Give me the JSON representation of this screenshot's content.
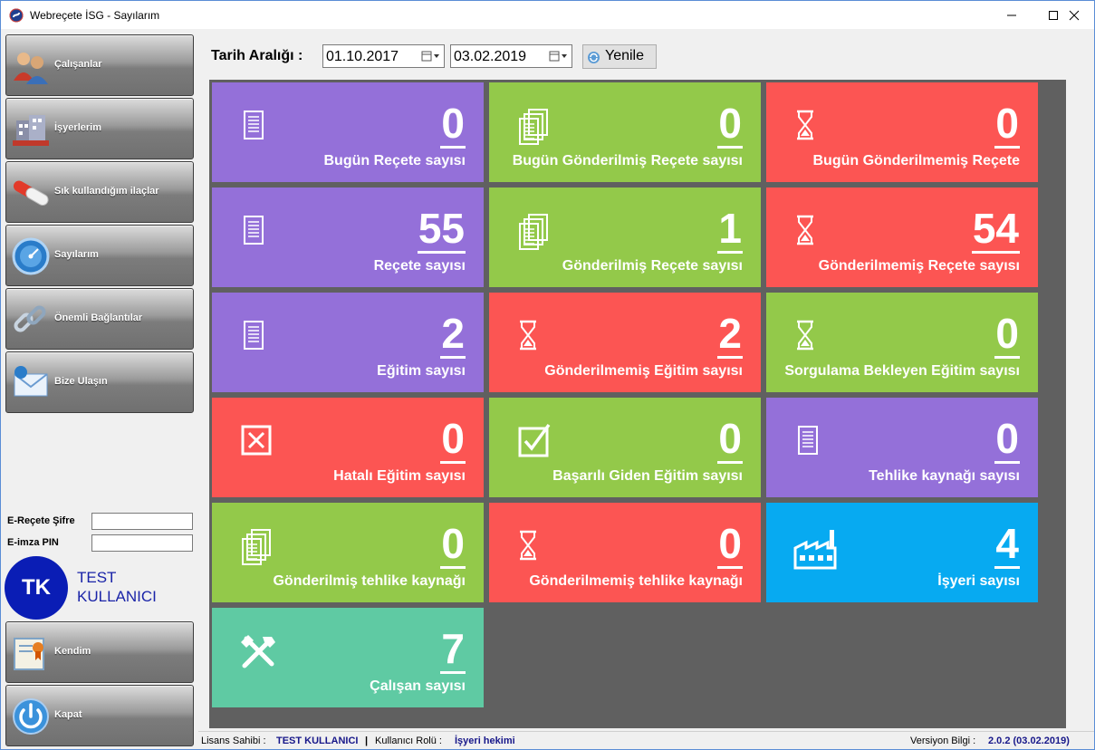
{
  "window": {
    "title": "Webreçete İSG - Sayılarım"
  },
  "sidebar": {
    "items": [
      {
        "label": "Çalışanlar",
        "icon": "people-icon"
      },
      {
        "label": "İşyerlerim",
        "icon": "building-icon"
      },
      {
        "label": "Sık kullandığım ilaçlar",
        "icon": "pills-icon"
      },
      {
        "label": "Sayılarım",
        "icon": "dashboard-gauge-icon"
      },
      {
        "label": "Önemli Bağlantılar",
        "icon": "chain-link-icon"
      },
      {
        "label": "Bize Ulaşın",
        "icon": "mail-icon"
      }
    ],
    "erecete_label": "E-Reçete Şifre",
    "eimza_label": "E-imza PIN",
    "avatar_initials": "TK",
    "user_name": "TEST KULLANICI",
    "bottom_items": [
      {
        "label": "Kendim",
        "icon": "certificate-icon"
      },
      {
        "label": "Kapat",
        "icon": "power-icon"
      }
    ]
  },
  "toolbar": {
    "date_range_label": "Tarih Aralığı :",
    "start_date": "01.10.2017",
    "end_date": "03.02.2019",
    "refresh_label": "Yenile"
  },
  "tiles": [
    {
      "value": "0",
      "caption": "Bugün Reçete sayısı",
      "color": "#9470d9",
      "icon": "document-icon"
    },
    {
      "value": "0",
      "caption": "Bugün Gönderilmiş Reçete sayısı",
      "color": "#93c94a",
      "icon": "documents-stack-icon"
    },
    {
      "value": "0",
      "caption": "Bugün Gönderilmemiş Reçete",
      "color": "#fc5553",
      "icon": "hourglass-icon"
    },
    {
      "value": "55",
      "caption": "Reçete sayısı",
      "color": "#9470d9",
      "icon": "document-icon"
    },
    {
      "value": "1",
      "caption": "Gönderilmiş Reçete sayısı",
      "color": "#93c94a",
      "icon": "documents-stack-icon"
    },
    {
      "value": "54",
      "caption": "Gönderilmemiş Reçete sayısı",
      "color": "#fc5553",
      "icon": "hourglass-icon"
    },
    {
      "value": "2",
      "caption": "Eğitim sayısı",
      "color": "#9470d9",
      "icon": "document-icon"
    },
    {
      "value": "2",
      "caption": "Gönderilmemiş Eğitim sayısı",
      "color": "#fc5553",
      "icon": "hourglass-icon"
    },
    {
      "value": "0",
      "caption": "Sorgulama Bekleyen Eğitim sayısı",
      "color": "#93c94a",
      "icon": "hourglass-icon"
    },
    {
      "value": "0",
      "caption": "Hatalı Eğitim sayısı",
      "color": "#fc5553",
      "icon": "x-box-icon"
    },
    {
      "value": "0",
      "caption": "Başarılı Giden Eğitim sayısı",
      "color": "#93c94a",
      "icon": "checkbox-icon"
    },
    {
      "value": "0",
      "caption": "Tehlike kaynağı sayısı",
      "color": "#9470d9",
      "icon": "document-icon"
    },
    {
      "value": "0",
      "caption": "Gönderilmiş tehlike kaynağı",
      "color": "#93c94a",
      "icon": "documents-stack-icon"
    },
    {
      "value": "0",
      "caption": "Gönderilmemiş tehlike kaynağı",
      "color": "#fc5553",
      "icon": "hourglass-icon"
    },
    {
      "value": "4",
      "caption": "İşyeri sayısı",
      "color": "#07aaf1",
      "icon": "factory-icon"
    },
    {
      "value": "7",
      "caption": "Çalışan sayısı",
      "color": "#5fcaa3",
      "icon": "tools-icon"
    }
  ],
  "status": {
    "license_label": "Lisans Sahibi :",
    "license_value": "TEST KULLANICI",
    "role_label": "Kullanıcı Rolü :",
    "role_value": "İşyeri hekimi",
    "version_label": "Versiyon Bilgi :",
    "version_value": "2.0.2 (03.02.2019)"
  }
}
